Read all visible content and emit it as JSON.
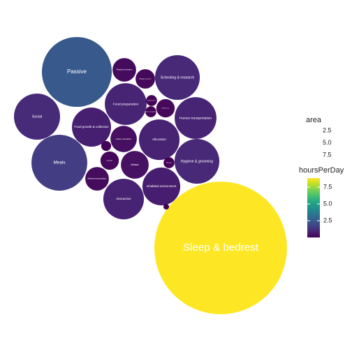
{
  "chart_data": {
    "type": "packed-bubble",
    "categories": [
      "Sleep & bedrest",
      "Passive",
      "Social",
      "Meals",
      "Schooling & research",
      "Food preparation",
      "Human transportation",
      "Food growth & collection",
      "Allocation",
      "Hygiene & grooming",
      "Interactive",
      "Inhabited environment",
      "Active recreation",
      "Artifacts",
      "Physical recreation",
      "Religious practice",
      "Health care",
      "Material transportation",
      "Buildings",
      "Infrastructure",
      "Waste management",
      null,
      "Materials",
      null
    ],
    "values": [
      8.85,
      2.46,
      1.07,
      1.57,
      1.01,
      0.88,
      0.88,
      0.77,
      0.83,
      1.01,
      0.83,
      0.72,
      0.35,
      0.39,
      0.28,
      0.19,
      0.17,
      0.28,
      0.17,
      0.06,
      0.06,
      0.05,
      0.06,
      0.016
    ],
    "colormap": "viridis",
    "clim": [
      0,
      8.85
    ],
    "size_legend_title": "area",
    "size_ticks": [
      2.5,
      {
        "value": 5,
        "label": "5.0"
      },
      7.5
    ],
    "color_legend_title": "hoursPerDay",
    "color_ticks": [
      2.5,
      {
        "value": 5,
        "label": "5.0"
      },
      7.5
    ]
  }
}
